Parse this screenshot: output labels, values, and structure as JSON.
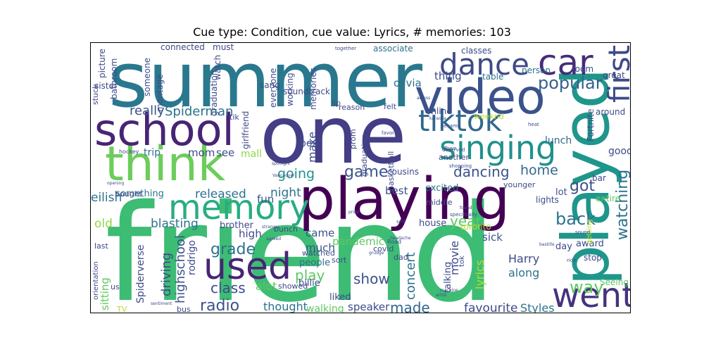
{
  "title": "Cue type: Condition, cue value: Lyrics, # memories: 103",
  "chart_data": {
    "type": "wordcloud",
    "title": "Cue type: Condition, cue value: Lyrics, # memories: 103",
    "colormap": "viridis",
    "words": [
      {
        "text": "friend",
        "weight": 1.0,
        "color": "#3dbc74",
        "rotate": 0
      },
      {
        "text": "summer",
        "weight": 0.8,
        "color": "#2a788e",
        "rotate": 0
      },
      {
        "text": "one",
        "weight": 0.75,
        "color": "#433e85",
        "rotate": 0
      },
      {
        "text": "played",
        "weight": 0.6,
        "color": "#1f968b",
        "rotate": -90
      },
      {
        "text": "playing",
        "weight": 0.55,
        "color": "#440154",
        "rotate": 0
      },
      {
        "text": "video",
        "weight": 0.5,
        "color": "#3b528b",
        "rotate": 0
      },
      {
        "text": "think",
        "weight": 0.5,
        "color": "#6ccd5a",
        "rotate": 0
      },
      {
        "text": "school",
        "weight": 0.45,
        "color": "#482475",
        "rotate": 0
      },
      {
        "text": "went",
        "weight": 0.38,
        "color": "#46327e",
        "rotate": 0
      },
      {
        "text": "used",
        "weight": 0.38,
        "color": "#482475",
        "rotate": 0
      },
      {
        "text": "memory",
        "weight": 0.38,
        "color": "#27ad81",
        "rotate": 0
      },
      {
        "text": "singing",
        "weight": 0.36,
        "color": "#21918c",
        "rotate": 0
      },
      {
        "text": "tiktok",
        "weight": 0.33,
        "color": "#31688e",
        "rotate": 0
      },
      {
        "text": "dance",
        "weight": 0.33,
        "color": "#3e4a89",
        "rotate": 0
      },
      {
        "text": "car",
        "weight": 0.33,
        "color": "#472c7a",
        "rotate": 0
      },
      {
        "text": "first",
        "weight": 0.3,
        "color": "#3e4a89",
        "rotate": -90
      },
      {
        "text": "popular",
        "weight": 0.2,
        "color": "#355f8d",
        "rotate": 0
      },
      {
        "text": "watching",
        "weight": 0.2,
        "color": "#2c728e",
        "rotate": -90
      },
      {
        "text": "back",
        "weight": 0.18,
        "color": "#2c728e",
        "rotate": 0
      },
      {
        "text": "way",
        "weight": 0.18,
        "color": "#5ec962",
        "rotate": 0
      },
      {
        "text": "play",
        "weight": 0.16,
        "color": "#5ec962",
        "rotate": 0
      },
      {
        "text": "radio",
        "weight": 0.16,
        "color": "#3b528b",
        "rotate": 0
      },
      {
        "text": "grade",
        "weight": 0.16,
        "color": "#2d708e",
        "rotate": 0
      },
      {
        "text": "game",
        "weight": 0.15,
        "color": "#3a538b",
        "rotate": 0
      },
      {
        "text": "dancing",
        "weight": 0.15,
        "color": "#3b528b",
        "rotate": 0
      },
      {
        "text": "got",
        "weight": 0.14,
        "color": "#3b528b",
        "rotate": 0
      },
      {
        "text": "home",
        "weight": 0.13,
        "color": "#31688e",
        "rotate": 0
      },
      {
        "text": "year",
        "weight": 0.13,
        "color": "#5ec962",
        "rotate": 0
      },
      {
        "text": "show",
        "weight": 0.13,
        "color": "#3b528b",
        "rotate": 0
      },
      {
        "text": "made",
        "weight": 0.13,
        "color": "#31688e",
        "rotate": 0
      },
      {
        "text": "concert",
        "weight": 0.13,
        "color": "#2c728e",
        "rotate": -90
      },
      {
        "text": "class",
        "weight": 0.13,
        "color": "#3e4a89",
        "rotate": 0
      },
      {
        "text": "driving",
        "weight": 0.13,
        "color": "#3e4a89",
        "rotate": -90
      },
      {
        "text": "highschool",
        "weight": 0.13,
        "color": "#3b528b",
        "rotate": -90
      },
      {
        "text": "going",
        "weight": 0.12,
        "color": "#21918c",
        "rotate": 0
      },
      {
        "text": "Spiderman",
        "weight": 0.12,
        "color": "#2c728e",
        "rotate": 0
      },
      {
        "text": "really",
        "weight": 0.12,
        "color": "#3b528b",
        "rotate": 0
      },
      {
        "text": "released",
        "weight": 0.12,
        "color": "#2c728e",
        "rotate": 0
      },
      {
        "text": "blasting",
        "weight": 0.12,
        "color": "#2c728e",
        "rotate": 0
      },
      {
        "text": "old",
        "weight": 0.12,
        "color": "#8fd744",
        "rotate": 0
      },
      {
        "text": "eilish",
        "weight": 0.11,
        "color": "#2c728e",
        "rotate": 0
      },
      {
        "text": "night",
        "weight": 0.11,
        "color": "#2c728e",
        "rotate": 0
      },
      {
        "text": "make",
        "weight": 0.11,
        "color": "#3e4a89",
        "rotate": -90
      },
      {
        "text": "favourite",
        "weight": 0.11,
        "color": "#3e4a89",
        "rotate": 0
      },
      {
        "text": "Styles",
        "weight": 0.1,
        "color": "#2c728e",
        "rotate": 0
      },
      {
        "text": "lyrics",
        "weight": 0.1,
        "color": "#b5de2b",
        "rotate": -90
      },
      {
        "text": "movie",
        "weight": 0.1,
        "color": "#3e4a89",
        "rotate": -90
      },
      {
        "text": "Harry",
        "weight": 0.1,
        "color": "#3e4a89",
        "rotate": 0
      },
      {
        "text": "along",
        "weight": 0.1,
        "color": "#2c728e",
        "rotate": 0
      },
      {
        "text": "alot",
        "weight": 0.1,
        "color": "#5ec962",
        "rotate": 0
      },
      {
        "text": "thought",
        "weight": 0.1,
        "color": "#2c728e",
        "rotate": 0
      },
      {
        "text": "speaker",
        "weight": 0.09,
        "color": "#3e4a89",
        "rotate": 0
      },
      {
        "text": "walking",
        "weight": 0.09,
        "color": "#5ec962",
        "rotate": 0
      },
      {
        "text": "pandemic",
        "weight": 0.09,
        "color": "#5ec962",
        "rotate": 0
      },
      {
        "text": "came",
        "weight": 0.09,
        "color": "#3b528b",
        "rotate": 0
      },
      {
        "text": "much",
        "weight": 0.09,
        "color": "#3b528b",
        "rotate": 0
      },
      {
        "text": "high",
        "weight": 0.09,
        "color": "#3e4a89",
        "rotate": 0
      },
      {
        "text": "fun",
        "weight": 0.09,
        "color": "#3b528b",
        "rotate": 0
      },
      {
        "text": "sitting",
        "weight": 0.09,
        "color": "#5ec962",
        "rotate": -90
      },
      {
        "text": "Spiderverse",
        "weight": 0.09,
        "color": "#3e4a89",
        "rotate": -90
      },
      {
        "text": "rodrigo",
        "weight": 0.09,
        "color": "#3e4a89",
        "rotate": -90
      },
      {
        "text": "mom",
        "weight": 0.09,
        "color": "#3e4a89",
        "rotate": 0
      },
      {
        "text": "see",
        "weight": 0.08,
        "color": "#3b528b",
        "rotate": 0
      },
      {
        "text": "trip",
        "weight": 0.08,
        "color": "#2c728e",
        "rotate": 0
      },
      {
        "text": "mall",
        "weight": 0.08,
        "color": "#8fd744",
        "rotate": 0
      },
      {
        "text": "box",
        "weight": 0.08,
        "color": "#3b528b",
        "rotate": 0
      },
      {
        "text": "best",
        "weight": 0.08,
        "color": "#3b528b",
        "rotate": 0
      },
      {
        "text": "sick",
        "weight": 0.08,
        "color": "#3b528b",
        "rotate": 0
      },
      {
        "text": "lunch",
        "weight": 0.08,
        "color": "#31688e",
        "rotate": 0
      },
      {
        "text": "thing",
        "weight": 0.08,
        "color": "#3e4a89",
        "rotate": 0
      },
      {
        "text": "olivia",
        "weight": 0.08,
        "color": "#2c728e",
        "rotate": 0
      },
      {
        "text": "good",
        "weight": 0.08,
        "color": "#3e4a89",
        "rotate": 0
      },
      {
        "text": "lot",
        "weight": 0.07,
        "color": "#3b528b",
        "rotate": 0
      },
      {
        "text": "something",
        "weight": 0.07,
        "color": "#2c728e",
        "rotate": 0
      },
      {
        "text": "brother",
        "weight": 0.07,
        "color": "#3e4a89",
        "rotate": 0
      },
      {
        "text": "people",
        "weight": 0.07,
        "color": "#2c728e",
        "rotate": 0
      },
      {
        "text": "billie",
        "weight": 0.07,
        "color": "#3e4a89",
        "rotate": 0
      },
      {
        "text": "liked",
        "weight": 0.07,
        "color": "#3e4a89",
        "rotate": 0
      },
      {
        "text": "talking",
        "weight": 0.07,
        "color": "#3e4a89",
        "rotate": -90
      },
      {
        "text": "excited",
        "weight": 0.07,
        "color": "#2c728e",
        "rotate": 0
      },
      {
        "text": "house",
        "weight": 0.07,
        "color": "#3e4a89",
        "rotate": 0
      },
      {
        "text": "toronto",
        "weight": 0.07,
        "color": "#b5de2b",
        "rotate": 0
      },
      {
        "text": "day",
        "weight": 0.07,
        "color": "#3e4a89",
        "rotate": 0
      },
      {
        "text": "award",
        "weight": 0.07,
        "color": "#3e4a89",
        "rotate": 0
      },
      {
        "text": "stop",
        "weight": 0.07,
        "color": "#3e4a89",
        "rotate": 0
      },
      {
        "text": "Seeing",
        "weight": 0.06,
        "color": "#5ec962",
        "rotate": 0
      },
      {
        "text": "lights",
        "weight": 0.06,
        "color": "#3e4a89",
        "rotate": 0
      },
      {
        "text": "entire",
        "weight": 0.06,
        "color": "#5ec962",
        "rotate": 0
      },
      {
        "text": "bar",
        "weight": 0.06,
        "color": "#3e4a89",
        "rotate": 0
      },
      {
        "text": "around",
        "weight": 0.06,
        "color": "#3e4a89",
        "rotate": 0
      },
      {
        "text": "great",
        "weight": 0.06,
        "color": "#3e4a89",
        "rotate": 0
      },
      {
        "text": "Fortnite",
        "weight": 0.06,
        "color": "#3e4a89",
        "rotate": -90
      },
      {
        "text": "room",
        "weight": 0.06,
        "color": "#3e4a89",
        "rotate": 0
      },
      {
        "text": "classes",
        "weight": 0.06,
        "color": "#3e4a89",
        "rotate": 0
      },
      {
        "text": "person",
        "weight": 0.06,
        "color": "#2c728e",
        "rotate": 0
      },
      {
        "text": "table",
        "weight": 0.06,
        "color": "#2c728e",
        "rotate": 0
      },
      {
        "text": "online",
        "weight": 0.06,
        "color": "#3e4a89",
        "rotate": 0
      },
      {
        "text": "connected",
        "weight": 0.06,
        "color": "#3e4a89",
        "rotate": 0
      },
      {
        "text": "must",
        "weight": 0.06,
        "color": "#3e4a89",
        "rotate": 0
      },
      {
        "text": "associate",
        "weight": 0.06,
        "color": "#2c728e",
        "rotate": 0
      },
      {
        "text": "picture",
        "weight": 0.06,
        "color": "#3e4a89",
        "rotate": -90
      },
      {
        "text": "bathroom",
        "weight": 0.06,
        "color": "#3e4a89",
        "rotate": -90
      },
      {
        "text": "sister",
        "weight": 0.06,
        "color": "#3e4a89",
        "rotate": 0
      },
      {
        "text": "montage",
        "weight": 0.06,
        "color": "#3e4a89",
        "rotate": -90
      },
      {
        "text": "someone",
        "weight": 0.06,
        "color": "#3e4a89",
        "rotate": -90
      },
      {
        "text": "graduation",
        "weight": 0.06,
        "color": "#3e4a89",
        "rotate": -90
      },
      {
        "text": "watch",
        "weight": 0.06,
        "color": "#3e4a89",
        "rotate": -90
      },
      {
        "text": "everyone",
        "weight": 0.06,
        "color": "#3e4a89",
        "rotate": -90
      },
      {
        "text": "working",
        "weight": 0.06,
        "color": "#3e4a89",
        "rotate": -90
      },
      {
        "text": "memories",
        "weight": 0.06,
        "color": "#3e4a89",
        "rotate": -90
      },
      {
        "text": "girlfriend",
        "weight": 0.06,
        "color": "#3e4a89",
        "rotate": -90
      },
      {
        "text": "sang",
        "weight": 0.06,
        "color": "#3e4a89",
        "rotate": 0
      },
      {
        "text": "soundtrack",
        "weight": 0.06,
        "color": "#3e4a89",
        "rotate": 0
      },
      {
        "text": "lip",
        "weight": 0.05,
        "color": "#3e4a89",
        "rotate": 0
      },
      {
        "text": "reason",
        "weight": 0.05,
        "color": "#3e4a89",
        "rotate": 0
      },
      {
        "text": "felt",
        "weight": 0.05,
        "color": "#3e4a89",
        "rotate": 0
      },
      {
        "text": "prom",
        "weight": 0.05,
        "color": "#3e4a89",
        "rotate": -90
      },
      {
        "text": "basketball",
        "weight": 0.05,
        "color": "#3e4a89",
        "rotate": -90
      },
      {
        "text": "graduating",
        "weight": 0.05,
        "color": "#3e4a89",
        "rotate": -90
      },
      {
        "text": "cousins",
        "weight": 0.05,
        "color": "#3e4a89",
        "rotate": 0
      },
      {
        "text": "middle",
        "weight": 0.05,
        "color": "#3e4a89",
        "rotate": 0
      },
      {
        "text": "another",
        "weight": 0.05,
        "color": "#3e4a89",
        "rotate": 0
      },
      {
        "text": "younger",
        "weight": 0.05,
        "color": "#3e4a89",
        "rotate": 0
      },
      {
        "text": "weeknd",
        "weight": 0.05,
        "color": "#b5de2b",
        "rotate": 0
      },
      {
        "text": "last",
        "weight": 0.05,
        "color": "#3e4a89",
        "rotate": 0
      },
      {
        "text": "orientation",
        "weight": 0.05,
        "color": "#3e4a89",
        "rotate": -90
      },
      {
        "text": "us",
        "weight": 0.05,
        "color": "#3e4a89",
        "rotate": 0
      },
      {
        "text": "TV",
        "weight": 0.05,
        "color": "#b5de2b",
        "rotate": 0
      },
      {
        "text": "bus",
        "weight": 0.05,
        "color": "#3e4a89",
        "rotate": 0
      },
      {
        "text": "stuck",
        "weight": 0.05,
        "color": "#3e4a89",
        "rotate": -90
      },
      {
        "text": "bought",
        "weight": 0.05,
        "color": "#3e4a89",
        "rotate": 0
      },
      {
        "text": "covid",
        "weight": 0.05,
        "color": "#3e4a89",
        "rotate": 0
      },
      {
        "text": "watched",
        "weight": 0.05,
        "color": "#3e4a89",
        "rotate": 0
      },
      {
        "text": "showed",
        "weight": 0.05,
        "color": "#3e4a89",
        "rotate": 0
      },
      {
        "text": "sort",
        "weight": 0.05,
        "color": "#3e4a89",
        "rotate": 0
      },
      {
        "text": "dad",
        "weight": 0.05,
        "color": "#3e4a89",
        "rotate": 0
      },
      {
        "text": "tok",
        "weight": 0.05,
        "color": "#3e4a89",
        "rotate": -90
      },
      {
        "text": "tik",
        "weight": 0.05,
        "color": "#3e4a89",
        "rotate": 0
      },
      {
        "text": "bunch",
        "weight": 0.05,
        "color": "#3e4a89",
        "rotate": 0
      },
      {
        "text": "getting",
        "weight": 0.04,
        "color": "#b5de2b",
        "rotate": -90
      },
      {
        "text": "hockey",
        "weight": 0.03,
        "color": "#3e4a89",
        "rotate": 0
      },
      {
        "text": "Road",
        "weight": 0.03,
        "color": "#3e4a89",
        "rotate": 0
      },
      {
        "text": "favorite",
        "weight": 0.03,
        "color": "#3e4a89",
        "rotate": 0
      },
      {
        "text": "Town",
        "weight": 0.03,
        "color": "#3e4a89",
        "rotate": 0
      },
      {
        "text": "became",
        "weight": 0.03,
        "color": "#3e4a89",
        "rotate": 0
      },
      {
        "text": "shopping",
        "weight": 0.03,
        "color": "#3e4a89",
        "rotate": 0
      },
      {
        "text": "specifically",
        "weight": 0.03,
        "color": "#3e4a89",
        "rotate": 0
      },
      {
        "text": "sound",
        "weight": 0.03,
        "color": "#3e4a89",
        "rotate": 0
      },
      {
        "text": "ride",
        "weight": 0.03,
        "color": "#3e4a89",
        "rotate": 0
      },
      {
        "text": "self",
        "weight": 0.03,
        "color": "#3e4a89",
        "rotate": 0
      },
      {
        "text": "heat",
        "weight": 0.03,
        "color": "#3e4a89",
        "rotate": 0
      },
      {
        "text": "together",
        "weight": 0.03,
        "color": "#3e4a89",
        "rotate": 0
      },
      {
        "text": "deserved",
        "weight": 0.03,
        "color": "#3e4a89",
        "rotate": 0
      },
      {
        "text": "across",
        "weight": 0.02,
        "color": "#3e4a89",
        "rotate": 0
      },
      {
        "text": "karaoke",
        "weight": 0.02,
        "color": "#3e4a89",
        "rotate": 0
      },
      {
        "text": "pride",
        "weight": 0.02,
        "color": "#3e4a89",
        "rotate": 0
      },
      {
        "text": "bastille",
        "weight": 0.02,
        "color": "#3e4a89",
        "rotate": 0
      },
      {
        "text": "stranger",
        "weight": 0.02,
        "color": "#3e4a89",
        "rotate": 0
      },
      {
        "text": "agreed",
        "weight": 0.02,
        "color": "#3e4a89",
        "rotate": 0
      },
      {
        "text": "headache",
        "weight": 0.02,
        "color": "#3e4a89",
        "rotate": 0
      },
      {
        "text": "grudge",
        "weight": 0.02,
        "color": "#3e4a89",
        "rotate": 0
      },
      {
        "text": "Vancouver",
        "weight": 0.02,
        "color": "#3e4a89",
        "rotate": 0
      },
      {
        "text": "spotlight",
        "weight": 0.02,
        "color": "#3e4a89",
        "rotate": 0
      },
      {
        "text": "opening",
        "weight": 0.02,
        "color": "#3e4a89",
        "rotate": 0
      },
      {
        "text": "sentiment",
        "weight": 0.02,
        "color": "#3e4a89",
        "rotate": 0
      },
      {
        "text": "machine",
        "weight": 0.02,
        "color": "#3e4a89",
        "rotate": 0
      },
      {
        "text": "found",
        "weight": 0.02,
        "color": "#3e4a89",
        "rotate": 0
      },
      {
        "text": "artist",
        "weight": 0.02,
        "color": "#3e4a89",
        "rotate": 0
      }
    ]
  }
}
